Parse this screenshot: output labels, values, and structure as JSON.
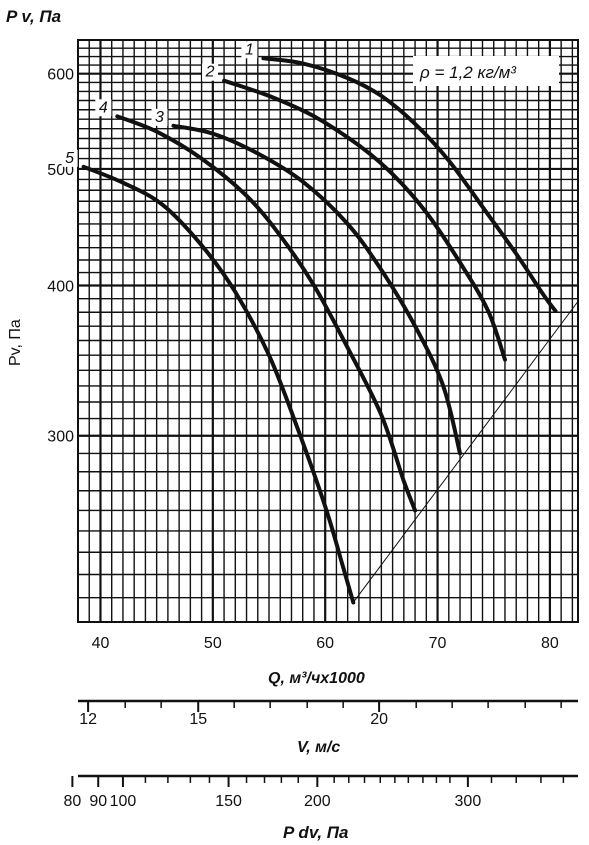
{
  "chart_data": {
    "type": "line",
    "title": "",
    "top_label": "P v, Па",
    "ylabel": "Pv, Па",
    "xlabel": "Q, м³/чх1000",
    "density_note": "ρ = 1,2 кг/м³",
    "x_ticks": [
      "40",
      "50",
      "60",
      "70",
      "80"
    ],
    "y_ticks": [
      "600",
      "500",
      "400",
      "300"
    ],
    "y_scale": "log",
    "xlim": [
      38,
      82.5
    ],
    "ylim": [
      210,
      640
    ],
    "grid": true,
    "series": [
      {
        "name": "1",
        "points": [
          [
            54.5,
            618
          ],
          [
            58,
            612
          ],
          [
            62,
            595
          ],
          [
            65,
            575
          ],
          [
            68,
            545
          ],
          [
            71,
            508
          ],
          [
            74,
            465
          ],
          [
            77,
            425
          ],
          [
            79.5,
            392
          ],
          [
            80.5,
            381
          ]
        ]
      },
      {
        "name": "2",
        "points": [
          [
            51,
            592
          ],
          [
            55,
            575
          ],
          [
            59,
            553
          ],
          [
            63,
            523
          ],
          [
            66,
            495
          ],
          [
            69,
            460
          ],
          [
            72,
            418
          ],
          [
            74.5,
            381
          ],
          [
            76,
            347
          ]
        ]
      },
      {
        "name": "3",
        "points": [
          [
            46.5,
            543
          ],
          [
            50,
            535
          ],
          [
            54,
            515
          ],
          [
            58,
            488
          ],
          [
            62,
            450
          ],
          [
            65,
            412
          ],
          [
            68,
            370
          ],
          [
            70.5,
            330
          ],
          [
            72,
            290
          ]
        ]
      },
      {
        "name": "4",
        "points": [
          [
            41.5,
            553
          ],
          [
            45,
            537
          ],
          [
            49,
            510
          ],
          [
            53,
            475
          ],
          [
            56,
            440
          ],
          [
            59,
            400
          ],
          [
            62,
            355
          ],
          [
            65,
            312
          ],
          [
            67,
            275
          ],
          [
            68,
            260
          ]
        ]
      },
      {
        "name": "5",
        "points": [
          [
            38.5,
            502
          ],
          [
            42,
            487
          ],
          [
            45.5,
            467
          ],
          [
            49,
            432
          ],
          [
            52,
            395
          ],
          [
            55,
            350
          ],
          [
            57.5,
            305
          ],
          [
            60,
            262
          ],
          [
            61.5,
            235
          ],
          [
            62.5,
            218
          ]
        ]
      }
    ],
    "boundary_line": [
      [
        62.5,
        218
      ],
      [
        82.5,
        388
      ]
    ],
    "velocity_scale": {
      "label": "V, м/с",
      "ticks": [
        {
          "v": 12,
          "q": 38.9,
          "label": "12"
        },
        {
          "v": 15,
          "q": 48.7,
          "label": "15"
        },
        {
          "v": 20,
          "q": 64.8,
          "label": "20"
        }
      ],
      "minor_q": [
        38.9,
        42.2,
        45.4,
        48.7,
        51.9,
        55.1,
        58.4,
        61.6,
        64.8,
        68.1,
        71.3,
        74.5,
        77.8,
        81.0
      ]
    },
    "dynamic_pressure_scale": {
      "label": "P dv, Па",
      "ticks": [
        {
          "p": 80,
          "q": 37.5,
          "label": "80"
        },
        {
          "p": 90,
          "q": 39.8,
          "label": "90"
        },
        {
          "p": 100,
          "q": 42.0,
          "label": "100"
        },
        {
          "p": 150,
          "q": 51.4,
          "label": "150"
        },
        {
          "p": 200,
          "q": 59.3,
          "label": "200"
        },
        {
          "p": 300,
          "q": 72.7,
          "label": "300"
        }
      ],
      "minor_q": [
        44.0,
        46.0,
        48.0,
        49.7,
        53.0,
        54.6,
        56.1,
        57.6,
        60.8,
        62.1,
        63.5,
        64.9,
        66.2,
        67.4,
        68.7,
        69.9,
        71.1,
        74.8,
        77.0,
        79.2,
        81.2
      ]
    }
  }
}
